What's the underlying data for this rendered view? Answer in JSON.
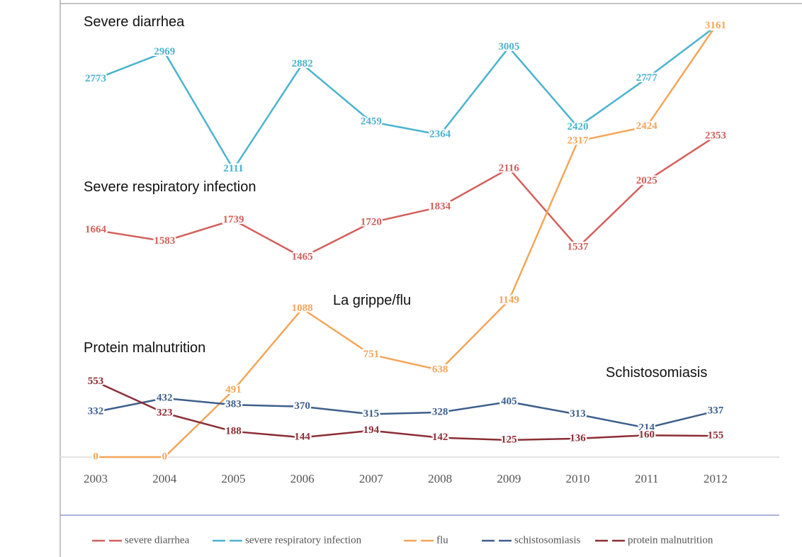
{
  "chart_data": {
    "type": "line",
    "annotations": [
      "Severe diarrhea",
      "Severe respiratory infection",
      "La grippe/flu",
      "Protein malnutrition",
      "Schistosomiasis"
    ],
    "categories": [
      "2003",
      "2004",
      "2005",
      "2006",
      "2007",
      "2008",
      "2009",
      "2010",
      "2011",
      "2012"
    ],
    "series": [
      {
        "name": "severe diarrhea",
        "color": "#d2605b",
        "values": [
          1664,
          1583,
          1739,
          1465,
          1720,
          1834,
          2116,
          1537,
          2025,
          2353
        ]
      },
      {
        "name": "severe respiratory infection",
        "color": "#4bb3cf",
        "values": [
          2773,
          2969,
          2111,
          2882,
          2459,
          2364,
          3005,
          2420,
          2777,
          3158
        ]
      },
      {
        "name": "flu",
        "color": "#f3a65a",
        "values": [
          0,
          0,
          491,
          1088,
          751,
          638,
          1149,
          2317,
          2424,
          3161
        ]
      },
      {
        "name": "schistosomiasis",
        "color": "#3d5f8c",
        "values": [
          332,
          432,
          383,
          370,
          315,
          328,
          405,
          313,
          214,
          337
        ]
      },
      {
        "name": "protein malnutrition",
        "color": "#8b2e35",
        "values": [
          553,
          323,
          188,
          144,
          194,
          142,
          125,
          136,
          160,
          155
        ]
      }
    ],
    "ylim": [
      0,
      3300
    ],
    "legend": "bottom"
  }
}
